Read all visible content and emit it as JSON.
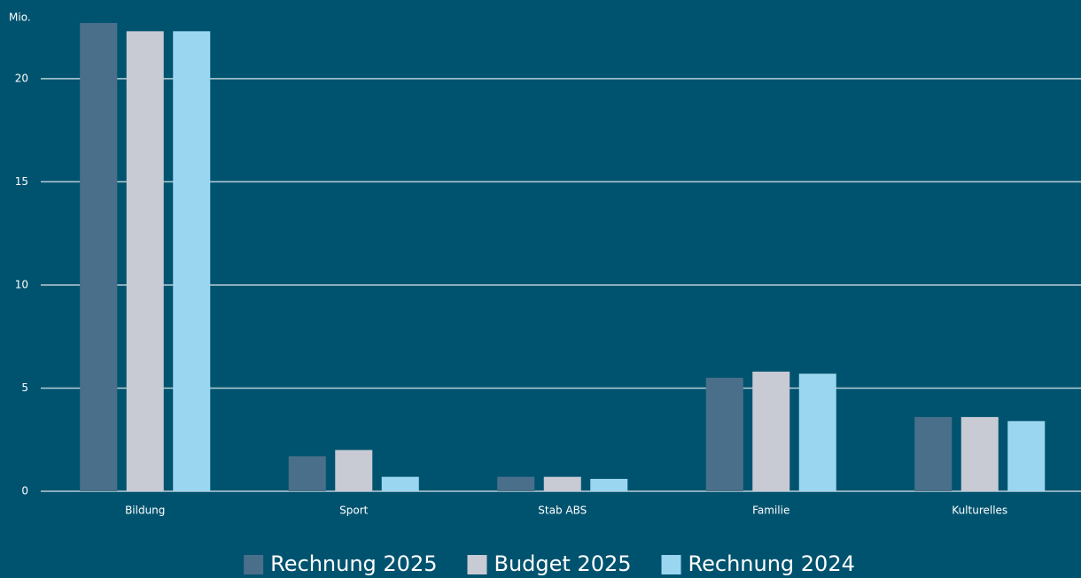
{
  "chart_data": {
    "type": "bar",
    "y_label": "Mio.",
    "categories": [
      "Bildung",
      "Sport",
      "Stab ABS",
      "Familie",
      "Kulturelles"
    ],
    "series": [
      {
        "name": "Rechnung 2025",
        "color": "#4a6f8a",
        "values": [
          22.7,
          1.7,
          0.7,
          5.5,
          3.6
        ]
      },
      {
        "name": "Budget 2025",
        "color": "#c8cad4",
        "values": [
          22.3,
          2.0,
          0.7,
          5.8,
          3.6
        ]
      },
      {
        "name": "Rechnung 2024",
        "color": "#9bd6f0",
        "values": [
          22.3,
          0.7,
          0.6,
          5.7,
          3.4
        ]
      }
    ],
    "ylim": [
      0,
      23
    ],
    "yticks": [
      0,
      5,
      10,
      15,
      20
    ],
    "grid": true,
    "legend": "bottom"
  }
}
